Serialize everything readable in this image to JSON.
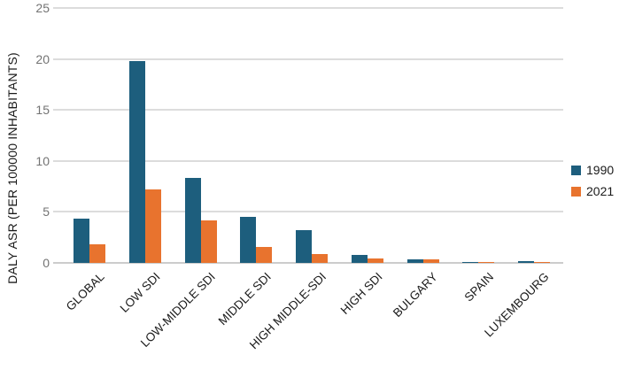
{
  "chart_data": {
    "type": "bar",
    "title": "",
    "xlabel": "",
    "ylabel": "DALY ASR (PER 100000 INHABITANTS)",
    "ylim": [
      0,
      25
    ],
    "yticks": [
      0,
      5,
      10,
      15,
      20,
      25
    ],
    "grid": true,
    "legend_position": "right",
    "categories": [
      "GLOBAL",
      "LOW SDI",
      "LOW-MIDDLE SDI",
      "MIDDLE SDI",
      "HIGH MIDDLE-SDI",
      "HIGH SDI",
      "BULGARY",
      "SPAIN",
      "LUXEMBOURG"
    ],
    "series": [
      {
        "name": "1990",
        "color": "#1d5e7d",
        "values": [
          4.3,
          19.8,
          8.3,
          4.5,
          3.2,
          0.8,
          0.35,
          0.12,
          0.15
        ]
      },
      {
        "name": "2021",
        "color": "#e8732e",
        "values": [
          1.8,
          7.2,
          4.2,
          1.6,
          0.9,
          0.45,
          0.35,
          0.12,
          0.12
        ]
      }
    ],
    "colors": {
      "gridline": "#dcdcdc",
      "axis_tick_text": "#737373",
      "label_text": "#1a1a1a"
    }
  }
}
